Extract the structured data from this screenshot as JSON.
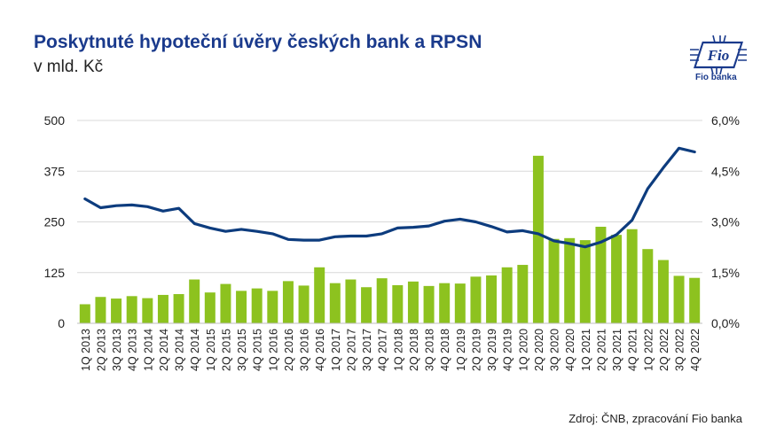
{
  "header": {
    "title": "Poskytnuté hypoteční úvěry českých bank a RPSN",
    "subtitle": "v mld. Kč"
  },
  "logo": {
    "mark_text": "Fio",
    "caption": "Fio banka",
    "icon": "fio-logo-icon",
    "color": "#1a3a8c"
  },
  "footer": {
    "source": "Zdroj: ČNB, zpracování Fio banka"
  },
  "chart_data": {
    "type": "bar",
    "combo": "bar+line",
    "categories": [
      "1Q 2013",
      "2Q 2013",
      "3Q 2013",
      "4Q 2013",
      "1Q 2014",
      "2Q 2014",
      "3Q 2014",
      "4Q 2014",
      "1Q 2015",
      "2Q 2015",
      "3Q 2015",
      "4Q 2015",
      "1Q 2016",
      "2Q 2016",
      "3Q 2016",
      "4Q 2016",
      "1Q 2017",
      "2Q 2017",
      "3Q 2017",
      "4Q 2017",
      "1Q 2018",
      "2Q 2018",
      "3Q 2018",
      "4Q 2018",
      "1Q 2019",
      "2Q 2019",
      "3Q 2019",
      "4Q 2019",
      "1Q 2020",
      "2Q 2020",
      "3Q 2020",
      "4Q 2020",
      "1Q 2021",
      "2Q 2021",
      "3Q 2021",
      "4Q 2021",
      "1Q 2022",
      "2Q 2022",
      "3Q 2022",
      "4Q 2022"
    ],
    "series": [
      {
        "kind": "bar",
        "axis": "left",
        "color": "#8dc21f",
        "values": [
          47,
          65,
          61,
          67,
          62,
          70,
          72,
          108,
          76,
          97,
          80,
          86,
          80,
          104,
          93,
          138,
          99,
          108,
          89,
          111,
          94,
          103,
          92,
          99,
          98,
          115,
          118,
          138,
          144,
          413,
          208,
          210,
          205,
          238,
          218,
          232,
          183,
          156,
          117,
          112
        ]
      },
      {
        "kind": "line",
        "axis": "right",
        "color": "#0d3c7e",
        "values": [
          3.68,
          3.42,
          3.48,
          3.5,
          3.45,
          3.32,
          3.4,
          2.95,
          2.82,
          2.72,
          2.78,
          2.72,
          2.65,
          2.48,
          2.46,
          2.46,
          2.56,
          2.58,
          2.58,
          2.65,
          2.82,
          2.84,
          2.88,
          3.02,
          3.08,
          3.0,
          2.86,
          2.7,
          2.74,
          2.65,
          2.44,
          2.36,
          2.26,
          2.4,
          2.62,
          3.05,
          3.98,
          4.6,
          5.18,
          5.07
        ]
      }
    ],
    "y_left": {
      "min": 0,
      "max": 500,
      "ticks": [
        "0",
        "125",
        "250",
        "375",
        "500"
      ]
    },
    "y_right": {
      "min": 0,
      "max": 6,
      "ticks": [
        "0,0%",
        "1,5%",
        "3,0%",
        "4,5%",
        "6,0%"
      ]
    },
    "grid": "horizontal",
    "legend": "none",
    "title": "",
    "xlabel": "",
    "ylabel": ""
  }
}
